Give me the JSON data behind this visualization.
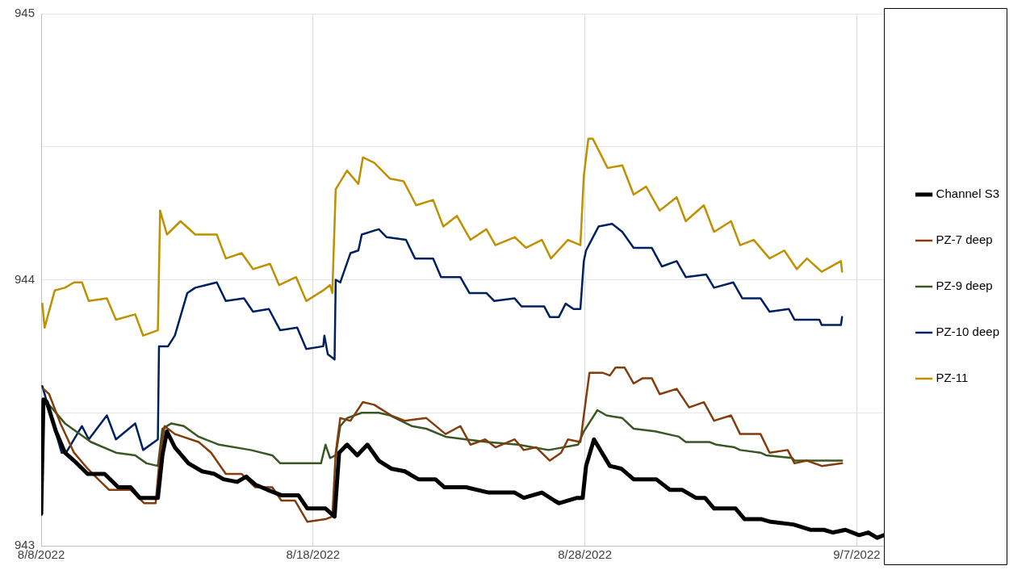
{
  "chart_data": {
    "type": "line",
    "xlim": [
      "2022-08-08",
      "2022-09-08"
    ],
    "xticks": [
      {
        "value": "2022-08-08",
        "label": "8/8/2022"
      },
      {
        "value": "2022-08-18",
        "label": "8/18/2022"
      },
      {
        "value": "2022-08-28",
        "label": "8/28/2022"
      },
      {
        "value": "2022-09-07",
        "label": "9/7/2022"
      }
    ],
    "ylim": [
      943,
      945
    ],
    "yticks": [
      943,
      {
        "value": 943.5,
        "label": null
      },
      944,
      {
        "value": 944.5,
        "label": null
      },
      945
    ],
    "grid": true,
    "legend": "right",
    "marker": "none",
    "line_style": "solid",
    "series": [
      {
        "name": "Channel S3",
        "color": "#000000",
        "x": [
          "2022-08-08T00:00",
          "2022-08-08T02:00",
          "2022-08-08T05:00",
          "2022-08-08T13:00",
          "2022-08-08T21:00",
          "2022-08-09T05:00",
          "2022-08-09T17:00",
          "2022-08-10T08:00",
          "2022-08-10T20:00",
          "2022-08-11T07:00",
          "2022-08-11T15:00",
          "2022-08-12T07:00",
          "2022-08-12T11:00",
          "2022-08-12T15:00",
          "2022-08-12T22:00",
          "2022-08-13T10:00",
          "2022-08-13T22:00",
          "2022-08-14T09:00",
          "2022-08-14T17:00",
          "2022-08-15T05:00",
          "2022-08-15T13:00",
          "2022-08-15T21:00",
          "2022-08-16T08:00",
          "2022-08-16T20:00",
          "2022-08-17T11:00",
          "2022-08-17T19:00",
          "2022-08-18T11:00",
          "2022-08-18T19:00",
          "2022-08-18T23:00",
          "2022-08-19T06:00",
          "2022-08-19T15:00",
          "2022-08-20T00:00",
          "2022-08-20T10:00",
          "2022-08-20T21:00",
          "2022-08-21T09:00",
          "2022-08-21T21:00",
          "2022-08-22T12:00",
          "2022-08-22T20:00",
          "2022-08-23T15:00",
          "2022-08-24T11:00",
          "2022-08-25T10:00",
          "2022-08-25T18:00",
          "2022-08-26T10:00",
          "2022-08-26T21:00",
          "2022-08-27T01:00",
          "2022-08-27T17:00",
          "2022-08-27T22:00",
          "2022-08-28T01:00",
          "2022-08-28T08:00",
          "2022-08-28T22:00",
          "2022-08-29T08:00",
          "2022-08-29T19:00",
          "2022-08-30T15:00",
          "2022-08-31T03:00",
          "2022-08-31T14:00",
          "2022-09-01T02:00",
          "2022-09-01T10:00",
          "2022-09-01T18:00",
          "2022-09-02T13:00",
          "2022-09-02T21:00",
          "2022-09-03T12:00",
          "2022-09-03T20:00",
          "2022-09-04T16:00",
          "2022-09-05T07:00",
          "2022-09-05T19:00",
          "2022-09-06T03:00",
          "2022-09-06T14:00",
          "2022-09-07T02:00",
          "2022-09-07T10:00",
          "2022-09-07T18:00",
          "2022-09-08T00:00"
        ],
        "values": [
          943.12,
          943.55,
          943.54,
          943.43,
          943.35,
          943.32,
          943.27,
          943.27,
          943.22,
          943.22,
          943.18,
          943.18,
          943.34,
          943.43,
          943.37,
          943.31,
          943.28,
          943.27,
          943.25,
          943.24,
          943.26,
          943.23,
          943.21,
          943.19,
          943.19,
          943.14,
          943.14,
          943.11,
          943.35,
          943.38,
          943.34,
          943.38,
          943.32,
          943.29,
          943.28,
          943.25,
          943.25,
          943.22,
          943.22,
          943.2,
          943.2,
          943.18,
          943.2,
          943.17,
          943.16,
          943.18,
          943.18,
          943.3,
          943.4,
          943.3,
          943.29,
          943.25,
          943.25,
          943.21,
          943.21,
          943.18,
          943.18,
          943.14,
          943.14,
          943.1,
          943.1,
          943.09,
          943.08,
          943.06,
          943.06,
          943.05,
          943.06,
          943.04,
          943.05,
          943.03,
          943.04
        ]
      },
      {
        "name": "PZ-7 deep",
        "color": "#843c0c",
        "x": [
          "2022-08-08T02:00",
          "2022-08-08T07:00",
          "2022-08-08T17:00",
          "2022-08-09T05:00",
          "2022-08-09T17:00",
          "2022-08-10T00:00",
          "2022-08-10T12:00",
          "2022-08-11T07:00",
          "2022-08-11T19:00",
          "2022-08-12T05:00",
          "2022-08-12T09:00",
          "2022-08-12T13:00",
          "2022-08-12T22:00",
          "2022-08-13T19:00",
          "2022-08-14T06:00",
          "2022-08-14T19:00",
          "2022-08-15T09:00",
          "2022-08-15T21:00",
          "2022-08-16T12:00",
          "2022-08-16T20:00",
          "2022-08-17T08:00",
          "2022-08-17T19:00",
          "2022-08-18T11:00",
          "2022-08-18T17:00",
          "2022-08-18T20:00",
          "2022-08-19T00:00",
          "2022-08-19T09:00",
          "2022-08-19T20:00",
          "2022-08-20T06:00",
          "2022-08-20T21:00",
          "2022-08-21T09:00",
          "2022-08-22T04:00",
          "2022-08-22T21:00",
          "2022-08-23T10:00",
          "2022-08-23T19:00",
          "2022-08-24T08:00",
          "2022-08-24T17:00",
          "2022-08-25T10:00",
          "2022-08-25T18:00",
          "2022-08-26T05:00",
          "2022-08-26T17:00",
          "2022-08-27T03:00",
          "2022-08-27T09:00",
          "2022-08-27T20:00",
          "2022-08-27T23:00",
          "2022-08-28T04:00",
          "2022-08-28T16:00",
          "2022-08-28T22:00",
          "2022-08-29T03:00",
          "2022-08-29T11:00",
          "2022-08-29T19:00",
          "2022-08-30T03:00",
          "2022-08-30T11:00",
          "2022-08-30T18:00",
          "2022-08-31T09:00",
          "2022-08-31T20:00",
          "2022-09-01T09:00",
          "2022-09-01T18:00",
          "2022-09-02T09:00",
          "2022-09-02T17:00",
          "2022-09-03T11:00",
          "2022-09-03T19:00",
          "2022-09-04T11:00",
          "2022-09-04T17:00",
          "2022-09-05T04:00",
          "2022-09-05T17:00",
          "2022-09-06T11:00"
        ],
        "values": [
          943.59,
          943.57,
          943.46,
          943.35,
          943.29,
          943.26,
          943.21,
          943.21,
          943.16,
          943.16,
          943.35,
          943.45,
          943.42,
          943.39,
          943.35,
          943.27,
          943.27,
          943.22,
          943.22,
          943.17,
          943.17,
          943.09,
          943.1,
          943.11,
          943.35,
          943.48,
          943.47,
          943.54,
          943.53,
          943.49,
          943.47,
          943.48,
          943.42,
          943.45,
          943.38,
          943.4,
          943.37,
          943.4,
          943.36,
          943.37,
          943.32,
          943.35,
          943.4,
          943.39,
          943.49,
          943.65,
          943.65,
          943.64,
          943.67,
          943.67,
          943.61,
          943.63,
          943.63,
          943.57,
          943.59,
          943.52,
          943.54,
          943.47,
          943.49,
          943.42,
          943.42,
          943.35,
          943.36,
          943.31,
          943.32,
          943.3,
          943.31
        ]
      },
      {
        "name": "PZ-9 deep",
        "color": "#385723",
        "x": [
          "2022-08-08T00:00",
          "2022-08-08T02:00",
          "2022-08-08T09:00",
          "2022-08-08T21:00",
          "2022-08-09T20:00",
          "2022-08-10T18:00",
          "2022-08-11T11:00",
          "2022-08-11T21:00",
          "2022-08-12T07:00",
          "2022-08-12T11:00",
          "2022-08-12T19:00",
          "2022-08-13T06:00",
          "2022-08-13T19:00",
          "2022-08-14T13:00",
          "2022-08-15T17:00",
          "2022-08-16T12:00",
          "2022-08-16T19:00",
          "2022-08-17T15:00",
          "2022-08-18T07:00",
          "2022-08-18T11:00",
          "2022-08-18T15:00",
          "2022-08-18T20:00",
          "2022-08-19T00:00",
          "2022-08-19T06:00",
          "2022-08-19T19:00",
          "2022-08-20T10:00",
          "2022-08-20T20:00",
          "2022-08-21T15:00",
          "2022-08-22T04:00",
          "2022-08-22T21:00",
          "2022-08-23T15:00",
          "2022-08-24T10:00",
          "2022-08-25T13:00",
          "2022-08-26T16:00",
          "2022-08-27T18:00",
          "2022-08-27T23:00",
          "2022-08-28T11:00",
          "2022-08-28T19:00",
          "2022-08-29T09:00",
          "2022-08-29T19:00",
          "2022-08-30T14:00",
          "2022-08-31T11:00",
          "2022-08-31T17:00",
          "2022-09-01T14:00",
          "2022-09-01T20:00",
          "2022-09-02T12:00",
          "2022-09-02T17:00",
          "2022-09-03T11:00",
          "2022-09-03T16:00",
          "2022-09-04T15:00",
          "2022-09-04T17:00",
          "2022-09-06T11:00"
        ],
        "values": [
          943.34,
          943.55,
          943.52,
          943.46,
          943.39,
          943.35,
          943.34,
          943.31,
          943.3,
          943.44,
          943.46,
          943.45,
          943.41,
          943.38,
          943.36,
          943.34,
          943.31,
          943.31,
          943.31,
          943.38,
          943.33,
          943.34,
          943.45,
          943.48,
          943.5,
          943.5,
          943.49,
          943.45,
          943.44,
          943.41,
          943.4,
          943.39,
          943.38,
          943.36,
          943.38,
          943.43,
          943.51,
          943.49,
          943.48,
          943.44,
          943.43,
          943.41,
          943.39,
          943.39,
          943.38,
          943.37,
          943.36,
          943.35,
          943.34,
          943.33,
          943.32,
          943.32
        ]
      },
      {
        "name": "PZ-10 deep",
        "color": "#002060",
        "x": [
          "2022-08-08T01:00",
          "2022-08-08T18:00",
          "2022-08-08T22:00",
          "2022-08-09T12:00",
          "2022-08-09T18:00",
          "2022-08-10T10:00",
          "2022-08-10T18:00",
          "2022-08-11T11:00",
          "2022-08-11T18:00",
          "2022-08-12T07:00",
          "2022-08-12T08:00",
          "2022-08-12T16:00",
          "2022-08-12T22:00",
          "2022-08-13T09:00",
          "2022-08-13T16:00",
          "2022-08-14T11:00",
          "2022-08-14T19:00",
          "2022-08-15T11:00",
          "2022-08-15T19:00",
          "2022-08-16T09:00",
          "2022-08-16T19:00",
          "2022-08-17T10:00",
          "2022-08-17T18:00",
          "2022-08-18T09:00",
          "2022-08-18T10:00",
          "2022-08-18T13:00",
          "2022-08-18T19:00",
          "2022-08-18T20:00",
          "2022-08-19T00:00",
          "2022-08-19T09:00",
          "2022-08-19T16:00",
          "2022-08-19T19:00",
          "2022-08-20T10:00",
          "2022-08-20T17:00",
          "2022-08-21T10:00",
          "2022-08-21T18:00",
          "2022-08-22T10:00",
          "2022-08-22T17:00",
          "2022-08-23T10:00",
          "2022-08-23T18:00",
          "2022-08-24T09:00",
          "2022-08-24T16:00",
          "2022-08-25T10:00",
          "2022-08-25T16:00",
          "2022-08-26T12:00",
          "2022-08-26T17:00",
          "2022-08-27T01:00",
          "2022-08-27T07:00",
          "2022-08-27T14:00",
          "2022-08-27T20:00",
          "2022-08-27T23:00",
          "2022-08-28T01:00",
          "2022-08-28T12:00",
          "2022-08-29T00:00",
          "2022-08-29T09:00",
          "2022-08-29T19:00",
          "2022-08-30T11:00",
          "2022-08-30T20:00",
          "2022-08-31T09:00",
          "2022-08-31T17:00",
          "2022-09-01T11:00",
          "2022-09-01T18:00",
          "2022-09-02T11:00",
          "2022-09-02T19:00",
          "2022-09-03T11:00",
          "2022-09-03T19:00",
          "2022-09-04T12:00",
          "2022-09-04T17:00",
          "2022-09-05T15:00",
          "2022-09-05T17:00",
          "2022-09-06T10:00",
          "2022-09-06T11:00"
        ],
        "values": [
          943.6,
          943.35,
          943.35,
          943.45,
          943.4,
          943.49,
          943.4,
          943.46,
          943.36,
          943.4,
          943.75,
          943.75,
          943.79,
          943.95,
          943.97,
          943.99,
          943.92,
          943.93,
          943.88,
          943.89,
          943.81,
          943.82,
          943.74,
          943.75,
          943.79,
          943.72,
          943.7,
          944.0,
          943.99,
          944.1,
          944.11,
          944.17,
          944.19,
          944.16,
          944.15,
          944.08,
          944.08,
          944.01,
          944.01,
          943.95,
          943.95,
          943.92,
          943.93,
          943.9,
          943.9,
          943.86,
          943.86,
          943.91,
          943.89,
          943.89,
          944.07,
          944.11,
          944.2,
          944.21,
          944.18,
          944.12,
          944.12,
          944.05,
          944.07,
          944.01,
          944.02,
          943.97,
          943.99,
          943.93,
          943.93,
          943.88,
          943.89,
          943.85,
          943.85,
          943.83,
          943.83,
          943.86
        ]
      },
      {
        "name": "PZ-11",
        "color": "#bf9000",
        "x": [
          "2022-08-08T01:00",
          "2022-08-08T03:00",
          "2022-08-08T12:00",
          "2022-08-08T21:00",
          "2022-08-09T05:00",
          "2022-08-09T12:00",
          "2022-08-09T18:00",
          "2022-08-10T10:00",
          "2022-08-10T18:00",
          "2022-08-11T11:00",
          "2022-08-11T18:00",
          "2022-08-12T07:00",
          "2022-08-12T09:00",
          "2022-08-12T15:00",
          "2022-08-13T03:00",
          "2022-08-13T16:00",
          "2022-08-14T11:00",
          "2022-08-14T19:00",
          "2022-08-15T09:00",
          "2022-08-15T19:00",
          "2022-08-16T10:00",
          "2022-08-16T18:00",
          "2022-08-17T09:00",
          "2022-08-17T18:00",
          "2022-08-18T09:00",
          "2022-08-18T15:00",
          "2022-08-18T17:00",
          "2022-08-18T20:00",
          "2022-08-19T06:00",
          "2022-08-19T16:00",
          "2022-08-19T20:00",
          "2022-08-20T06:00",
          "2022-08-20T20:00",
          "2022-08-21T08:00",
          "2022-08-21T19:00",
          "2022-08-22T10:00",
          "2022-08-22T19:00",
          "2022-08-23T07:00",
          "2022-08-23T19:00",
          "2022-08-24T09:00",
          "2022-08-24T17:00",
          "2022-08-25T10:00",
          "2022-08-25T20:00",
          "2022-08-26T10:00",
          "2022-08-26T18:00",
          "2022-08-27T09:00",
          "2022-08-27T20:00",
          "2022-08-27T23:00",
          "2022-08-28T03:00",
          "2022-08-28T07:00",
          "2022-08-28T20:00",
          "2022-08-29T09:00",
          "2022-08-29T19:00",
          "2022-08-30T06:00",
          "2022-08-30T18:00",
          "2022-08-31T09:00",
          "2022-08-31T17:00",
          "2022-09-01T09:00",
          "2022-09-01T18:00",
          "2022-09-02T09:00",
          "2022-09-02T17:00",
          "2022-09-03T05:00",
          "2022-09-03T19:00",
          "2022-09-04T08:00",
          "2022-09-04T19:00",
          "2022-09-05T04:00",
          "2022-09-05T17:00",
          "2022-09-06T10:00",
          "2022-09-06T11:00"
        ],
        "values": [
          943.91,
          943.82,
          943.96,
          943.97,
          943.99,
          943.99,
          943.92,
          943.93,
          943.85,
          943.87,
          943.79,
          943.81,
          944.26,
          944.17,
          944.22,
          944.17,
          944.17,
          944.08,
          944.1,
          944.04,
          944.06,
          943.98,
          944.01,
          943.92,
          943.96,
          943.98,
          943.95,
          944.34,
          944.41,
          944.36,
          944.46,
          944.44,
          944.38,
          944.37,
          944.28,
          944.3,
          944.2,
          944.24,
          944.15,
          944.19,
          944.13,
          944.16,
          944.12,
          944.15,
          944.08,
          944.15,
          944.13,
          944.39,
          944.53,
          944.53,
          944.42,
          944.43,
          944.32,
          944.35,
          944.26,
          944.31,
          944.22,
          944.28,
          944.18,
          944.22,
          944.13,
          944.15,
          944.08,
          944.11,
          944.04,
          944.08,
          944.03,
          944.07,
          944.03
        ]
      }
    ]
  }
}
